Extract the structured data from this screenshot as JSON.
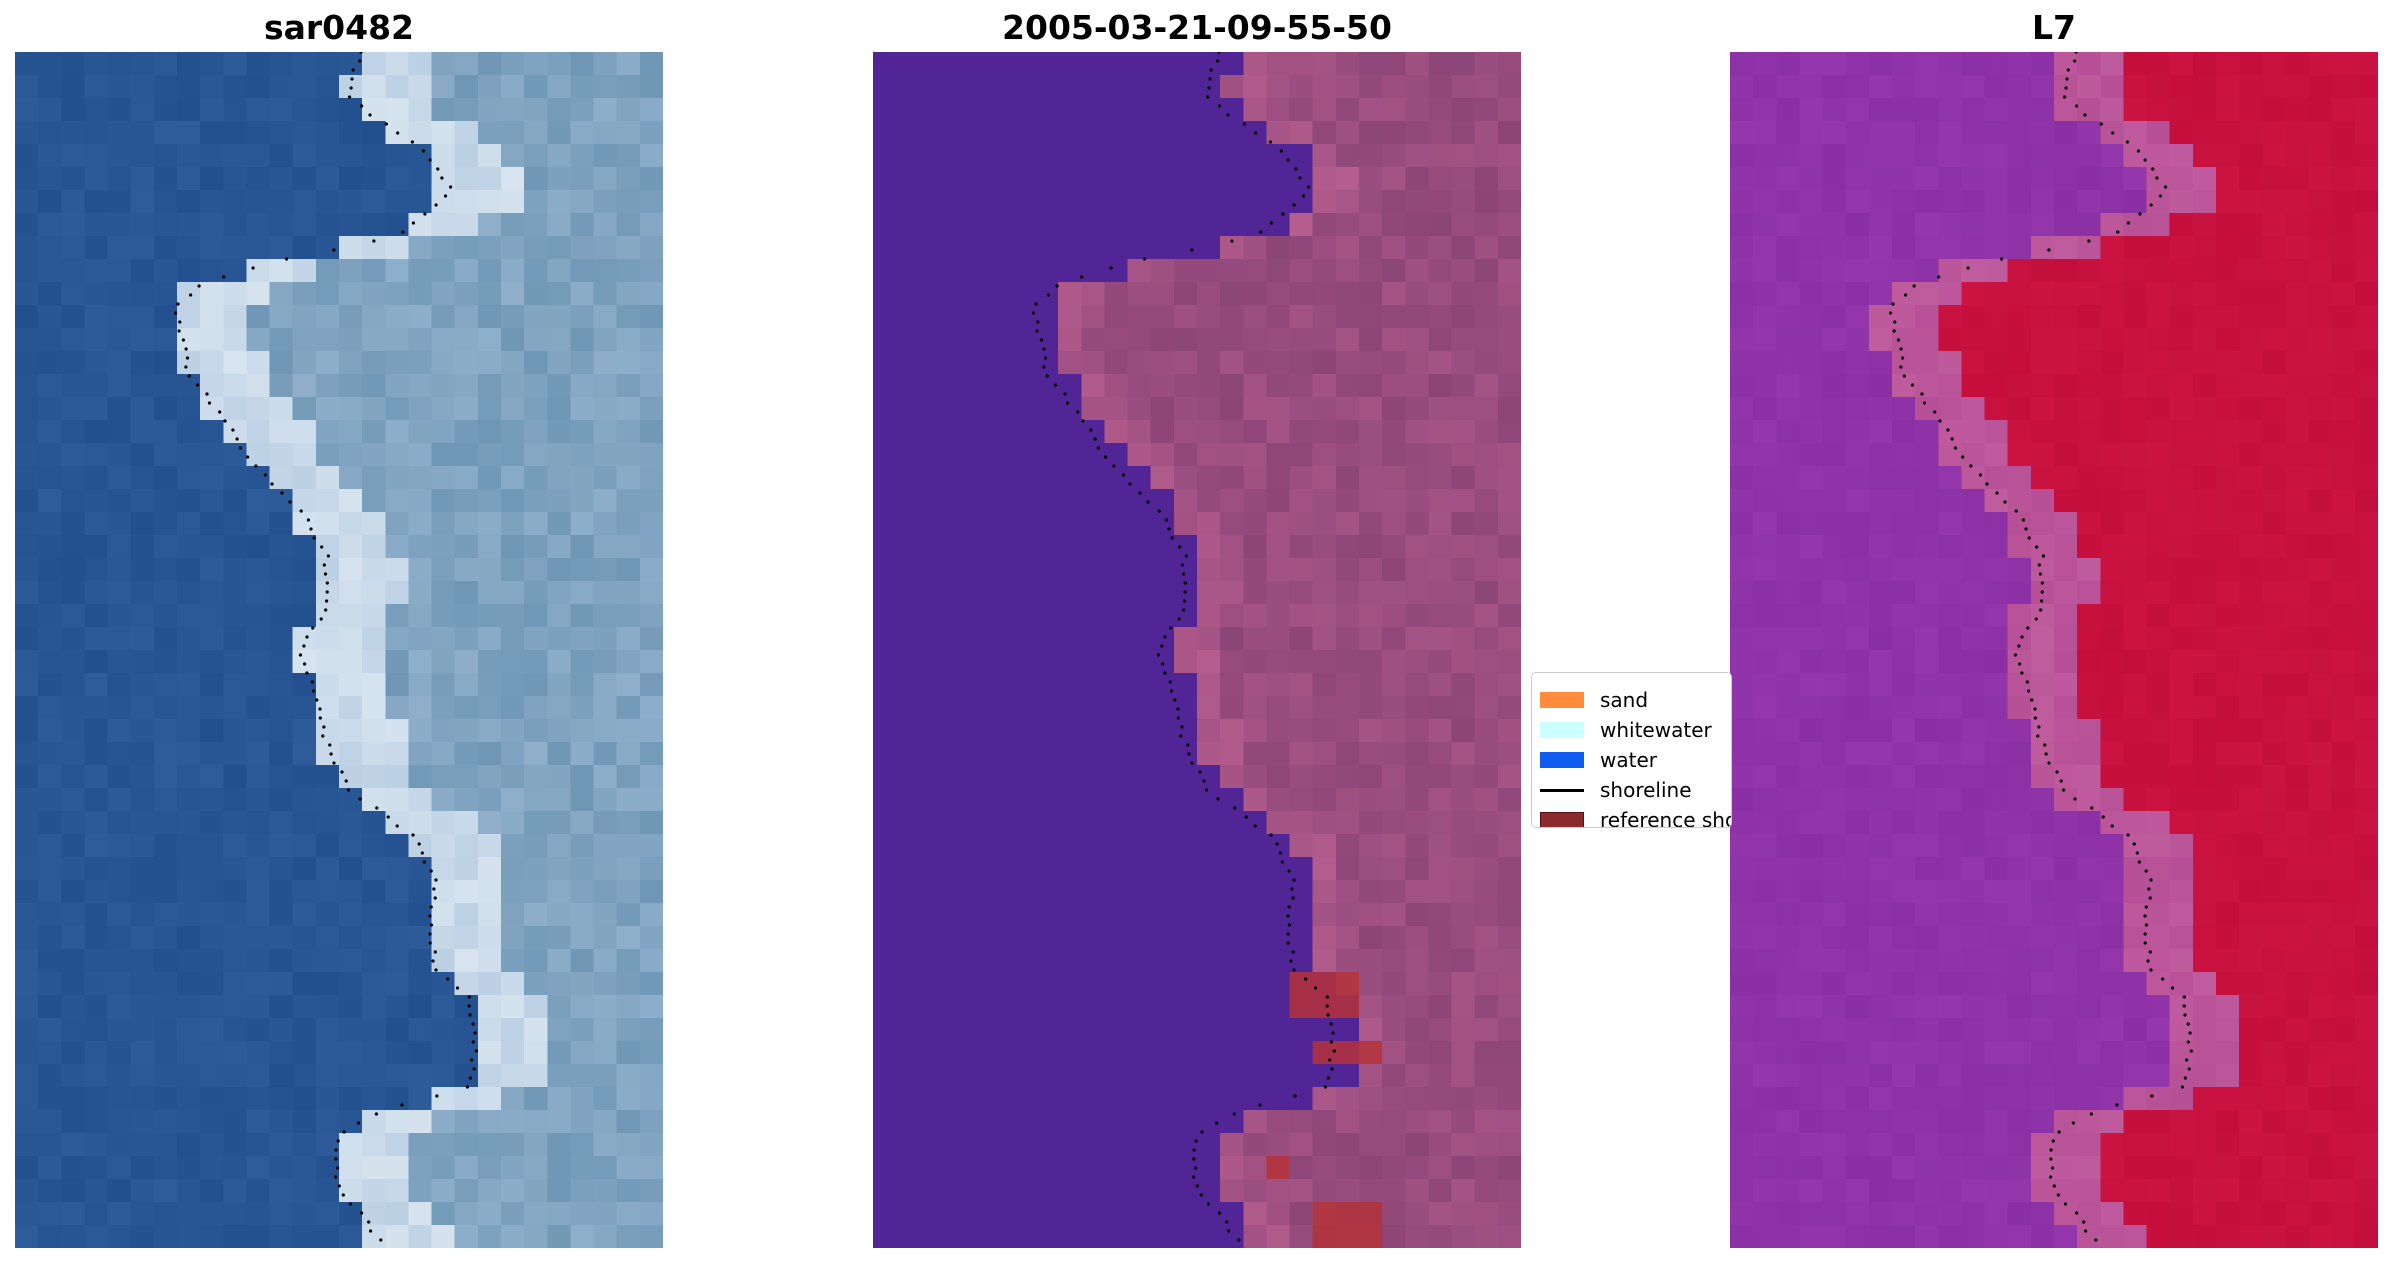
{
  "panels": {
    "left": {
      "title": "sar0482"
    },
    "middle": {
      "title": "2005-03-21-09-55-50"
    },
    "right": {
      "title": "L7"
    }
  },
  "legend": {
    "items": [
      {
        "label": "sand",
        "kind": "patch",
        "color": "#ff8c3a"
      },
      {
        "label": "whitewater",
        "kind": "patch",
        "color": "#ccffff"
      },
      {
        "label": "water",
        "kind": "patch",
        "color": "#0f5cf0"
      },
      {
        "label": "shoreline",
        "kind": "line",
        "color": "#000000"
      },
      {
        "label": "reference shoreline",
        "kind": "patch",
        "color": "#8b2a2e"
      }
    ]
  },
  "colors": {
    "rgb_water": "#22508f",
    "rgb_land": "#6f97b5",
    "rgb_surf": "#d7e4ef",
    "classified_water": "#512595",
    "classified_land": "#8c4577",
    "classified_land_light": "#b45d8e",
    "classified_reference": "#b4333a",
    "index_water": "#8a2fa4",
    "index_land": "#c40e3c",
    "index_transition": "#b75096",
    "bottom_strip": "#b85d92"
  }
}
